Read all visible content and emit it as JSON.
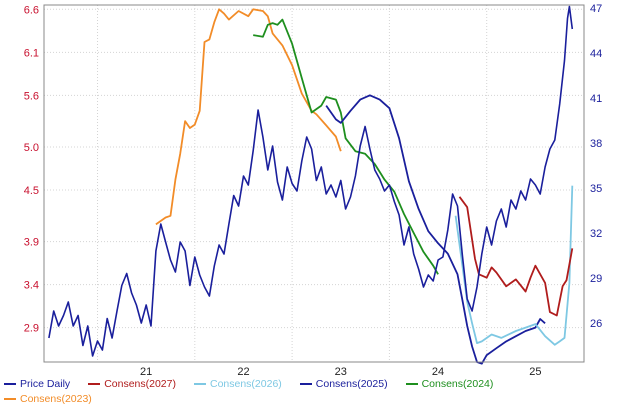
{
  "chart_data": {
    "type": "line",
    "title": "",
    "xlabel": "",
    "left_axis": {
      "ticks": [
        2.9,
        3.4,
        3.9,
        4.5,
        5.0,
        5.6,
        6.1,
        6.6
      ],
      "range": [
        2.5,
        6.65
      ],
      "color": "#c8102e"
    },
    "right_axis": {
      "ticks": [
        26,
        29,
        32,
        35,
        38,
        41,
        44,
        47
      ],
      "range": [
        23.4,
        47.2
      ],
      "color": "#1a1f9c"
    },
    "x_ticks": [
      {
        "label": "21",
        "x": 2021.0
      },
      {
        "label": "22",
        "x": 2022.0
      },
      {
        "label": "23",
        "x": 2023.0
      },
      {
        "label": "24",
        "x": 2024.0
      },
      {
        "label": "25",
        "x": 2025.0
      }
    ],
    "x_range": [
      2020.45,
      2026.0
    ],
    "grid": true,
    "legend_position": "bottom",
    "series": [
      {
        "name": "Price Daily",
        "axis": "right",
        "color": "#1a1f9c",
        "points": [
          [
            2020.5,
            25
          ],
          [
            2020.55,
            26.8
          ],
          [
            2020.6,
            25.8
          ],
          [
            2020.65,
            26.5
          ],
          [
            2020.7,
            27.4
          ],
          [
            2020.75,
            25.8
          ],
          [
            2020.8,
            26.5
          ],
          [
            2020.85,
            24.5
          ],
          [
            2020.9,
            25.8
          ],
          [
            2020.95,
            23.8
          ],
          [
            2021.0,
            24.8
          ],
          [
            2021.05,
            24.2
          ],
          [
            2021.1,
            26.3
          ],
          [
            2021.15,
            25
          ],
          [
            2021.2,
            26.8
          ],
          [
            2021.25,
            28.5
          ],
          [
            2021.3,
            29.3
          ],
          [
            2021.35,
            28
          ],
          [
            2021.4,
            27.2
          ],
          [
            2021.45,
            26
          ],
          [
            2021.5,
            27.2
          ],
          [
            2021.55,
            25.8
          ],
          [
            2021.6,
            30.8
          ],
          [
            2021.65,
            32.6
          ],
          [
            2021.7,
            31.4
          ],
          [
            2021.75,
            30.2
          ],
          [
            2021.8,
            29.4
          ],
          [
            2021.85,
            31.4
          ],
          [
            2021.9,
            30.8
          ],
          [
            2021.95,
            28.5
          ],
          [
            2022.0,
            30.4
          ],
          [
            2022.05,
            29.2
          ],
          [
            2022.1,
            28.4
          ],
          [
            2022.15,
            27.8
          ],
          [
            2022.2,
            29.8
          ],
          [
            2022.25,
            31.2
          ],
          [
            2022.3,
            30.6
          ],
          [
            2022.35,
            32.6
          ],
          [
            2022.4,
            34.5
          ],
          [
            2022.45,
            33.8
          ],
          [
            2022.5,
            35.8
          ],
          [
            2022.55,
            35.2
          ],
          [
            2022.6,
            37.5
          ],
          [
            2022.65,
            40.2
          ],
          [
            2022.7,
            38.4
          ],
          [
            2022.75,
            36.2
          ],
          [
            2022.8,
            37.8
          ],
          [
            2022.85,
            35.4
          ],
          [
            2022.9,
            34.2
          ],
          [
            2022.95,
            36.4
          ],
          [
            2023.0,
            35.3
          ],
          [
            2023.05,
            34.8
          ],
          [
            2023.1,
            36.8
          ],
          [
            2023.15,
            38.4
          ],
          [
            2023.2,
            37.6
          ],
          [
            2023.25,
            35.5
          ],
          [
            2023.3,
            36.4
          ],
          [
            2023.35,
            34.6
          ],
          [
            2023.4,
            35.2
          ],
          [
            2023.45,
            34.4
          ],
          [
            2023.5,
            35.5
          ],
          [
            2023.55,
            33.6
          ],
          [
            2023.6,
            34.4
          ],
          [
            2023.65,
            35.8
          ],
          [
            2023.7,
            37.8
          ],
          [
            2023.75,
            39.1
          ],
          [
            2023.8,
            37.6
          ],
          [
            2023.85,
            36.2
          ],
          [
            2023.9,
            35.6
          ],
          [
            2023.95,
            34.8
          ],
          [
            2024.0,
            35.2
          ],
          [
            2024.05,
            34.1
          ],
          [
            2024.1,
            33.2
          ],
          [
            2024.15,
            31.2
          ],
          [
            2024.2,
            32.4
          ],
          [
            2024.25,
            30.6
          ],
          [
            2024.3,
            29.6
          ],
          [
            2024.35,
            28.4
          ],
          [
            2024.4,
            29.2
          ],
          [
            2024.45,
            28.8
          ],
          [
            2024.5,
            30.2
          ],
          [
            2024.55,
            30.4
          ],
          [
            2024.6,
            32.2
          ],
          [
            2024.65,
            34.6
          ],
          [
            2024.7,
            33.8
          ],
          [
            2024.75,
            30.5
          ],
          [
            2024.8,
            27.6
          ],
          [
            2024.85,
            26.8
          ],
          [
            2024.9,
            28.4
          ],
          [
            2024.95,
            30.6
          ],
          [
            2025.0,
            32.4
          ],
          [
            2025.05,
            31.2
          ],
          [
            2025.1,
            32.8
          ],
          [
            2025.15,
            33.6
          ],
          [
            2025.2,
            32.4
          ],
          [
            2025.25,
            34.2
          ],
          [
            2025.3,
            33.6
          ],
          [
            2025.35,
            34.8
          ],
          [
            2025.4,
            34.2
          ],
          [
            2025.45,
            35.6
          ],
          [
            2025.5,
            35.2
          ],
          [
            2025.55,
            34.6
          ],
          [
            2025.6,
            36.4
          ],
          [
            2025.65,
            37.6
          ],
          [
            2025.7,
            38.2
          ],
          [
            2025.75,
            40.6
          ],
          [
            2025.8,
            43.5
          ],
          [
            2025.83,
            46.3
          ],
          [
            2025.85,
            47.1
          ],
          [
            2025.88,
            45.6
          ]
        ]
      },
      {
        "name": "Consens(2027)",
        "axis": "left",
        "color": "#b01c1c",
        "points": [
          [
            2024.72,
            4.42
          ],
          [
            2024.8,
            4.3
          ],
          [
            2024.88,
            3.7
          ],
          [
            2024.92,
            3.52
          ],
          [
            2025.0,
            3.48
          ],
          [
            2025.05,
            3.6
          ],
          [
            2025.1,
            3.54
          ],
          [
            2025.2,
            3.38
          ],
          [
            2025.3,
            3.46
          ],
          [
            2025.4,
            3.32
          ],
          [
            2025.45,
            3.48
          ],
          [
            2025.5,
            3.62
          ],
          [
            2025.6,
            3.42
          ],
          [
            2025.65,
            3.08
          ],
          [
            2025.72,
            3.04
          ],
          [
            2025.78,
            3.38
          ],
          [
            2025.82,
            3.45
          ],
          [
            2025.88,
            3.82
          ]
        ]
      },
      {
        "name": "Consens(2026)",
        "axis": "left",
        "color": "#7ec8e3",
        "points": [
          [
            2024.68,
            4.2
          ],
          [
            2024.75,
            3.62
          ],
          [
            2024.8,
            3.2
          ],
          [
            2024.85,
            2.95
          ],
          [
            2024.9,
            2.72
          ],
          [
            2024.95,
            2.74
          ],
          [
            2025.05,
            2.82
          ],
          [
            2025.15,
            2.78
          ],
          [
            2025.3,
            2.86
          ],
          [
            2025.4,
            2.9
          ],
          [
            2025.5,
            2.94
          ],
          [
            2025.6,
            2.8
          ],
          [
            2025.7,
            2.7
          ],
          [
            2025.75,
            2.74
          ],
          [
            2025.8,
            2.78
          ],
          [
            2025.85,
            3.42
          ],
          [
            2025.88,
            4.55
          ]
        ]
      },
      {
        "name": "Consens(2025)",
        "axis": "left",
        "color": "#1a1f9c",
        "points": [
          [
            2023.35,
            5.48
          ],
          [
            2023.45,
            5.32
          ],
          [
            2023.5,
            5.28
          ],
          [
            2023.6,
            5.42
          ],
          [
            2023.7,
            5.55
          ],
          [
            2023.8,
            5.6
          ],
          [
            2023.9,
            5.55
          ],
          [
            2024.0,
            5.45
          ],
          [
            2024.1,
            5.1
          ],
          [
            2024.2,
            4.6
          ],
          [
            2024.3,
            4.28
          ],
          [
            2024.4,
            4.02
          ],
          [
            2024.5,
            3.88
          ],
          [
            2024.6,
            3.76
          ],
          [
            2024.7,
            3.52
          ],
          [
            2024.75,
            3.22
          ],
          [
            2024.8,
            2.92
          ],
          [
            2024.85,
            2.68
          ],
          [
            2024.9,
            2.5
          ],
          [
            2024.95,
            2.48
          ],
          [
            2025.0,
            2.58
          ],
          [
            2025.1,
            2.66
          ],
          [
            2025.2,
            2.74
          ],
          [
            2025.3,
            2.8
          ],
          [
            2025.4,
            2.86
          ],
          [
            2025.5,
            2.9
          ],
          [
            2025.55,
            3.0
          ],
          [
            2025.6,
            2.95
          ]
        ]
      },
      {
        "name": "Consens(2024)",
        "axis": "left",
        "color": "#1e8f1e",
        "points": [
          [
            2022.6,
            6.3
          ],
          [
            2022.7,
            6.28
          ],
          [
            2022.75,
            6.42
          ],
          [
            2022.8,
            6.44
          ],
          [
            2022.85,
            6.42
          ],
          [
            2022.9,
            6.48
          ],
          [
            2023.0,
            6.2
          ],
          [
            2023.1,
            5.8
          ],
          [
            2023.2,
            5.4
          ],
          [
            2023.3,
            5.48
          ],
          [
            2023.35,
            5.58
          ],
          [
            2023.45,
            5.55
          ],
          [
            2023.5,
            5.4
          ],
          [
            2023.55,
            5.1
          ],
          [
            2023.65,
            4.95
          ],
          [
            2023.75,
            4.92
          ],
          [
            2023.85,
            4.8
          ],
          [
            2023.95,
            4.62
          ],
          [
            2024.05,
            4.48
          ],
          [
            2024.15,
            4.22
          ],
          [
            2024.25,
            4.0
          ],
          [
            2024.35,
            3.78
          ],
          [
            2024.45,
            3.62
          ],
          [
            2024.5,
            3.52
          ]
        ]
      },
      {
        "name": "Consens(2023)",
        "axis": "left",
        "color": "#f28c28",
        "points": [
          [
            2021.6,
            4.1
          ],
          [
            2021.7,
            4.18
          ],
          [
            2021.75,
            4.2
          ],
          [
            2021.8,
            4.62
          ],
          [
            2021.85,
            4.92
          ],
          [
            2021.9,
            5.3
          ],
          [
            2021.95,
            5.22
          ],
          [
            2022.0,
            5.26
          ],
          [
            2022.05,
            5.42
          ],
          [
            2022.1,
            6.22
          ],
          [
            2022.15,
            6.25
          ],
          [
            2022.2,
            6.45
          ],
          [
            2022.25,
            6.6
          ],
          [
            2022.3,
            6.55
          ],
          [
            2022.35,
            6.48
          ],
          [
            2022.45,
            6.58
          ],
          [
            2022.55,
            6.52
          ],
          [
            2022.6,
            6.6
          ],
          [
            2022.7,
            6.58
          ],
          [
            2022.75,
            6.52
          ],
          [
            2022.8,
            6.32
          ],
          [
            2022.9,
            6.18
          ],
          [
            2023.0,
            5.95
          ],
          [
            2023.1,
            5.62
          ],
          [
            2023.2,
            5.42
          ],
          [
            2023.25,
            5.38
          ],
          [
            2023.35,
            5.25
          ],
          [
            2023.45,
            5.12
          ],
          [
            2023.5,
            4.95
          ]
        ]
      }
    ]
  }
}
